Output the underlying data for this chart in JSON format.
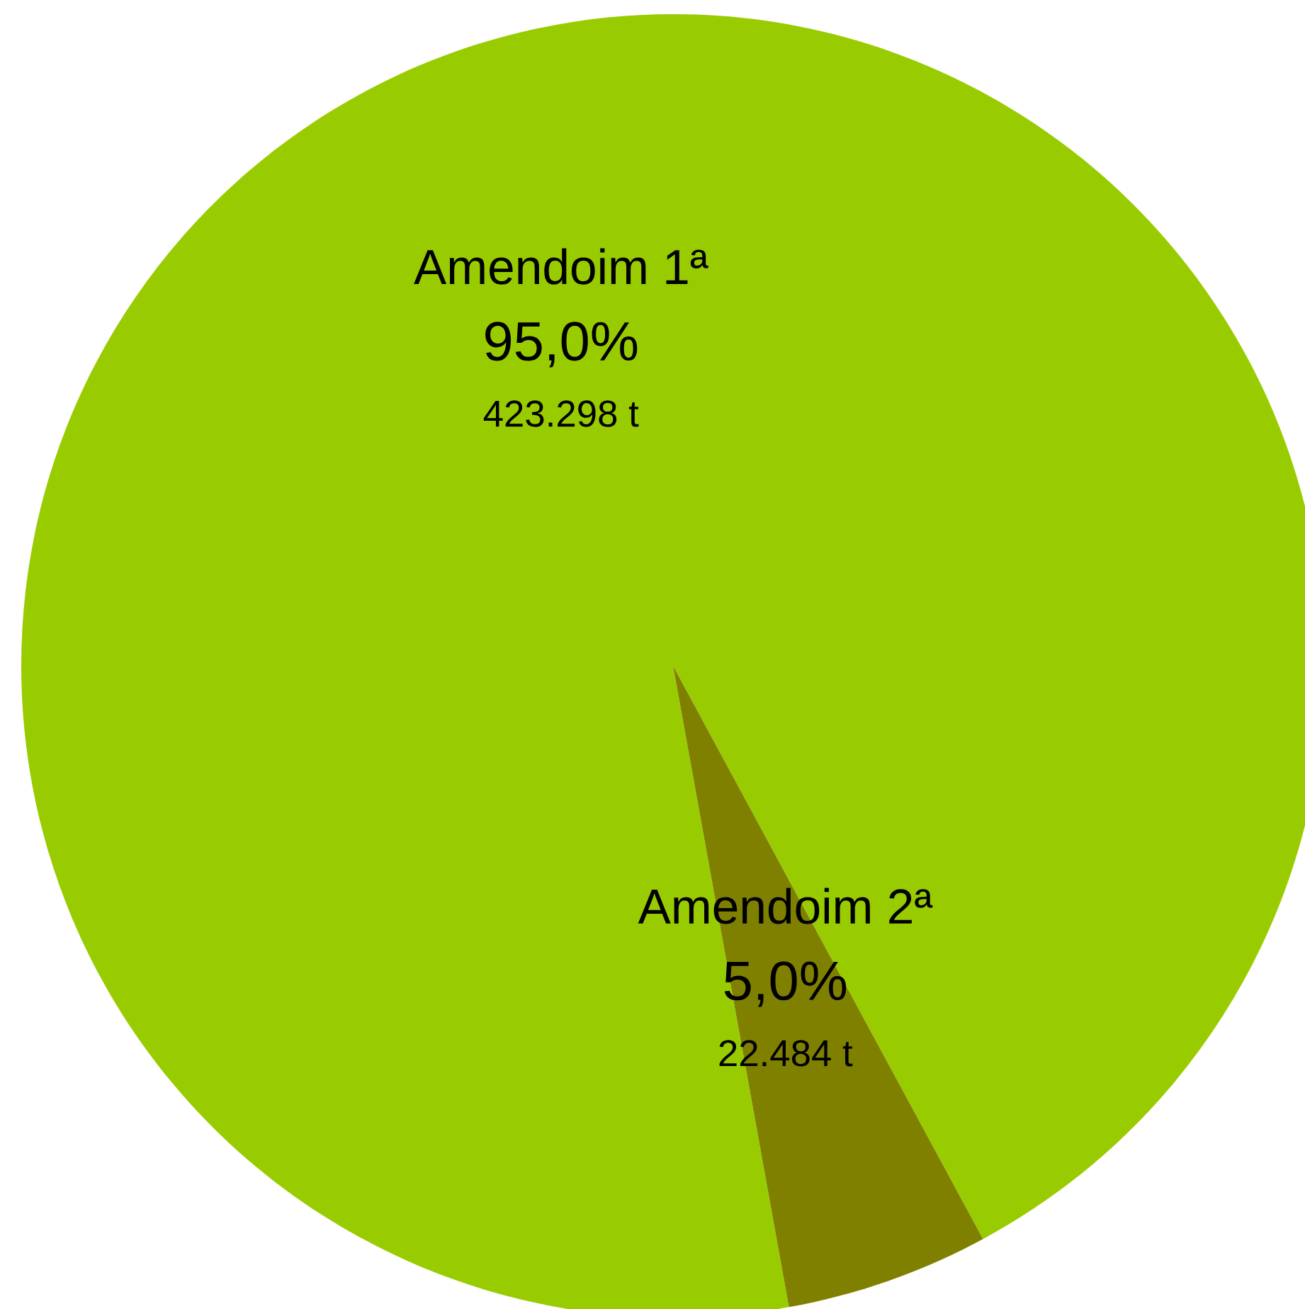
{
  "chart_data": {
    "type": "pie",
    "categories": [
      "Amendoim 1ª",
      "Amendoim 2ª"
    ],
    "values": [
      423298,
      22484
    ],
    "colors": [
      "#99cc00",
      "#808000"
    ],
    "value_labels": [
      "95,0%\n423.298 t",
      "5,0%\n22.484 t"
    ]
  }
}
